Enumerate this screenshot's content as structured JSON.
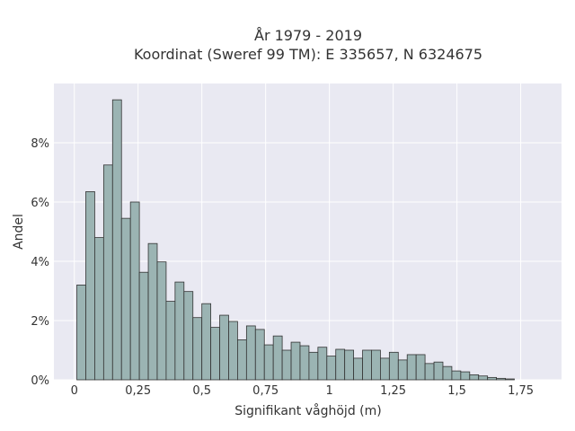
{
  "chart_data": {
    "type": "bar",
    "title": [
      "År 1979 - 2019",
      "Koordinat (Sweref 99 TM): E 335657, N 6324675"
    ],
    "xlabel": "Signifikant våghöjd (m)",
    "ylabel": "Andel",
    "xlim": [
      -0.08,
      1.91
    ],
    "ylim": [
      0,
      0.1
    ],
    "bin_width": 0.035,
    "bin_start": 0.01,
    "x_ticks": [
      {
        "value": 0,
        "label": "0"
      },
      {
        "value": 0.25,
        "label": "0,25"
      },
      {
        "value": 0.5,
        "label": "0,5"
      },
      {
        "value": 0.75,
        "label": "0,75"
      },
      {
        "value": 1,
        "label": "1"
      },
      {
        "value": 1.25,
        "label": "1,25"
      },
      {
        "value": 1.5,
        "label": "1,5"
      },
      {
        "value": 1.75,
        "label": "1,75"
      }
    ],
    "y_ticks": [
      {
        "value": 0,
        "label": "0%"
      },
      {
        "value": 0.02,
        "label": "2%"
      },
      {
        "value": 0.04,
        "label": "4%"
      },
      {
        "value": 0.06,
        "label": "6%"
      },
      {
        "value": 0.08,
        "label": "8%"
      }
    ],
    "values": [
      0.032,
      0.0635,
      0.048,
      0.0725,
      0.0945,
      0.0545,
      0.06,
      0.0363,
      0.046,
      0.0398,
      0.0265,
      0.033,
      0.0298,
      0.021,
      0.0257,
      0.0177,
      0.0218,
      0.0197,
      0.0135,
      0.0182,
      0.017,
      0.0118,
      0.0148,
      0.01,
      0.0127,
      0.0115,
      0.0093,
      0.011,
      0.008,
      0.0103,
      0.01,
      0.0073,
      0.01,
      0.01,
      0.0073,
      0.0093,
      0.0067,
      0.0085,
      0.0085,
      0.0055,
      0.006,
      0.0045,
      0.003,
      0.0027,
      0.0017,
      0.0013,
      0.0008,
      0.0005,
      0.0003
    ],
    "grid": true,
    "legend": "none",
    "colors": {
      "bar_fill": "#9bb4b3",
      "bar_edge": "#333333",
      "plot_bg": "#e9e9f2",
      "grid": "#ffffff"
    }
  }
}
